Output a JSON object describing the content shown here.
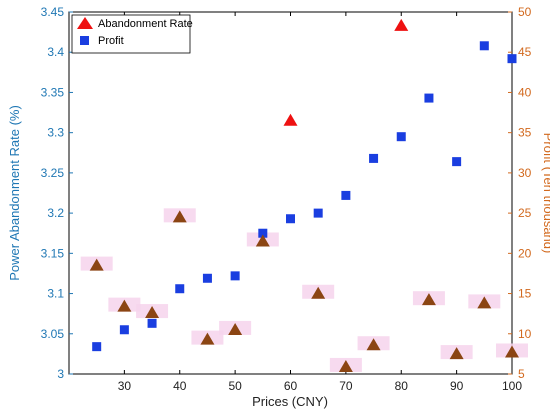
{
  "chart_data": {
    "type": "scatter",
    "xlabel": "Prices (CNY)",
    "ylabel_left": "Power Abandonment Rate (%)",
    "ylabel_right": "Profit (Ten thousand)",
    "xlim": [
      20,
      100
    ],
    "ylim_left": [
      3.0,
      3.45
    ],
    "ylim_right": [
      5,
      50
    ],
    "x_ticks": [
      30,
      40,
      50,
      60,
      70,
      80,
      90,
      100
    ],
    "y_left_ticks": [
      3,
      3.05,
      3.1,
      3.15,
      3.2,
      3.25,
      3.3,
      3.35,
      3.4,
      3.45
    ],
    "y_right_ticks": [
      5,
      10,
      15,
      20,
      25,
      30,
      35,
      40,
      45,
      50
    ],
    "legend_position": "top-left",
    "colors": {
      "left_axis": "#1f77b4",
      "right_axis": "#d2691e",
      "abandonment": "#ee1111",
      "abandonment_shadow": "#8b4513",
      "profit": "#1a3ee0",
      "highlight": "#f6d4ec"
    },
    "series": [
      {
        "name": "Abandonment Rate",
        "axis": "left",
        "marker": "triangle",
        "points": [
          {
            "x": 25,
            "y": 3.136,
            "shadow": true
          },
          {
            "x": 30,
            "y": 3.085,
            "shadow": true
          },
          {
            "x": 35,
            "y": 3.077,
            "shadow": true
          },
          {
            "x": 40,
            "y": 3.196,
            "shadow": true
          },
          {
            "x": 45,
            "y": 3.044,
            "shadow": true
          },
          {
            "x": 50,
            "y": 3.056,
            "shadow": true
          },
          {
            "x": 55,
            "y": 3.166,
            "shadow": true
          },
          {
            "x": 60,
            "y": 3.316,
            "shadow": false
          },
          {
            "x": 65,
            "y": 3.101,
            "shadow": true
          },
          {
            "x": 70,
            "y": 3.01,
            "shadow": true
          },
          {
            "x": 75,
            "y": 3.037,
            "shadow": true
          },
          {
            "x": 80,
            "y": 3.434,
            "shadow": false
          },
          {
            "x": 85,
            "y": 3.093,
            "shadow": true
          },
          {
            "x": 90,
            "y": 3.026,
            "shadow": true
          },
          {
            "x": 95,
            "y": 3.089,
            "shadow": true
          },
          {
            "x": 100,
            "y": 3.028,
            "shadow": true
          }
        ]
      },
      {
        "name": "Profit",
        "axis": "right",
        "marker": "square",
        "points": [
          {
            "x": 25,
            "y": 8.4
          },
          {
            "x": 30,
            "y": 10.5
          },
          {
            "x": 35,
            "y": 11.3
          },
          {
            "x": 40,
            "y": 15.6
          },
          {
            "x": 45,
            "y": 16.9
          },
          {
            "x": 50,
            "y": 17.2
          },
          {
            "x": 55,
            "y": 22.5
          },
          {
            "x": 60,
            "y": 24.3
          },
          {
            "x": 65,
            "y": 25.0
          },
          {
            "x": 70,
            "y": 27.2
          },
          {
            "x": 75,
            "y": 31.8
          },
          {
            "x": 80,
            "y": 34.5
          },
          {
            "x": 85,
            "y": 39.3
          },
          {
            "x": 90,
            "y": 31.4
          },
          {
            "x": 95,
            "y": 45.8
          },
          {
            "x": 100,
            "y": 44.2
          }
        ]
      }
    ]
  }
}
